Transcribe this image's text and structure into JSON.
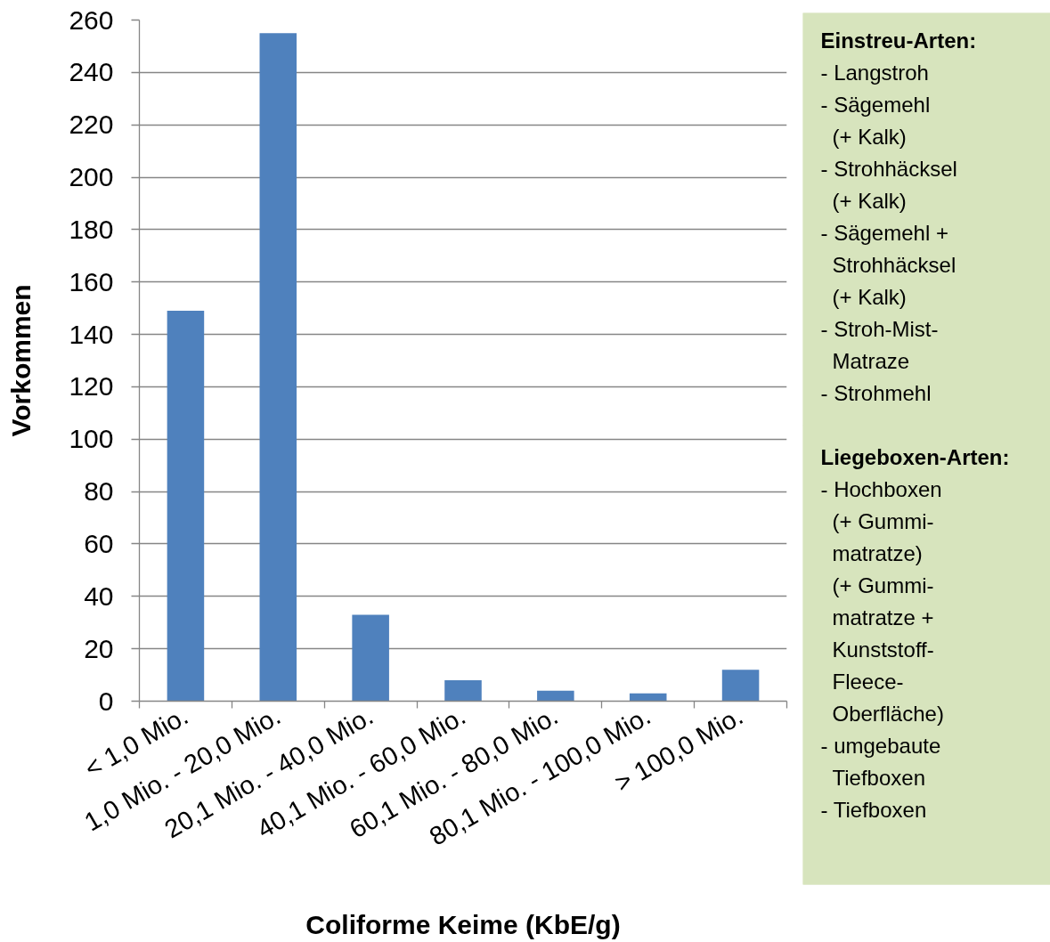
{
  "chart_data": [
    {
      "type": "bar",
      "categories": [
        "< 1,0 Mio.",
        "1,0 Mio. - 20,0 Mio.",
        "20,1 Mio. - 40,0 Mio.",
        "40,1 Mio. - 60,0 Mio.",
        "60,1 Mio. - 80,0 Mio.",
        "80,1 Mio. - 100,0 Mio.",
        "> 100,0 Mio."
      ],
      "values": [
        149,
        255,
        33,
        8,
        4,
        3,
        12
      ],
      "color": "#4f81bd",
      "xlabel": "Coliforme Keime (KbE/g)",
      "ylabel": "Vorkommen",
      "ylim": [
        0,
        260
      ],
      "yticks": [
        0,
        20,
        40,
        60,
        80,
        100,
        120,
        140,
        160,
        180,
        200,
        220,
        240,
        260
      ],
      "grid": "y"
    },
    {
      "type": "other",
      "title": "Einstreu-Arten:",
      "annotations": [
        "- Langstroh",
        "- Sägemehl\n(+ Kalk)",
        "- Strohhäcksel\n(+ Kalk)",
        "- Sägemehl +\nStrohhäcksel\n(+ Kalk)",
        "- Stroh-Mist-\nMatraze",
        "- Strohmehl"
      ],
      "color": "#d7e4bd"
    },
    {
      "type": "other",
      "title": "Liegeboxen-Arten:",
      "annotations": [
        "- Hochboxen\n(+ Gummi-\nmatratze)\n(+ Gummi-\nmatratze +\nKunststoff-\nFleece-\nOberfläche)",
        "- umgebaute\nTiefboxen",
        "- Tiefboxen"
      ],
      "color": "#d7e4bd"
    }
  ]
}
